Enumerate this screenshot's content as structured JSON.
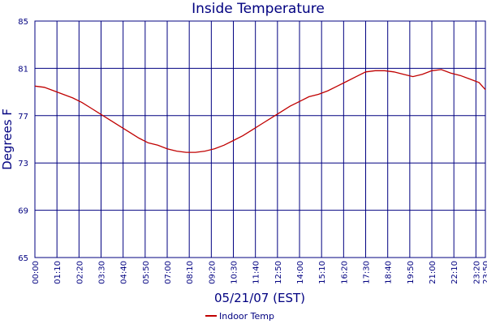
{
  "chart_data": {
    "type": "line",
    "title": "Inside Temperature",
    "xlabel": "05/21/07 (EST)",
    "ylabel": "Degrees F",
    "ylim": [
      65,
      85
    ],
    "yticks": [
      65,
      69,
      73,
      77,
      81,
      85
    ],
    "x_range_minutes": [
      0,
      1430
    ],
    "x_tick_labels": [
      "00:00",
      "01:10",
      "02:20",
      "03:30",
      "04:40",
      "05:50",
      "07:00",
      "08:10",
      "09:20",
      "10:30",
      "11:40",
      "12:50",
      "14:00",
      "15:10",
      "16:20",
      "17:30",
      "18:40",
      "19:50",
      "21:00",
      "22:10",
      "23:20",
      "23:50"
    ],
    "grid": true,
    "legend_position": "bottom-center",
    "colors": {
      "series": "#c00000",
      "grid": "#000080",
      "axis_text": "#000080"
    },
    "series": [
      {
        "name": "Indoor Temp",
        "x": [
          "00:00",
          "00:30",
          "01:00",
          "01:30",
          "02:00",
          "02:30",
          "03:00",
          "03:30",
          "04:00",
          "04:30",
          "05:00",
          "05:30",
          "06:00",
          "06:30",
          "07:00",
          "07:30",
          "08:00",
          "08:30",
          "09:00",
          "09:30",
          "10:00",
          "10:30",
          "11:00",
          "11:30",
          "12:00",
          "12:30",
          "13:00",
          "13:30",
          "14:00",
          "14:30",
          "15:00",
          "15:30",
          "16:00",
          "16:30",
          "17:00",
          "17:30",
          "18:00",
          "18:30",
          "19:00",
          "19:30",
          "20:00",
          "20:30",
          "21:00",
          "21:30",
          "22:00",
          "22:30",
          "23:00",
          "23:30",
          "23:50"
        ],
        "values": [
          79.5,
          79.4,
          79.1,
          78.8,
          78.5,
          78.1,
          77.6,
          77.1,
          76.6,
          76.1,
          75.6,
          75.1,
          74.7,
          74.5,
          74.2,
          74.0,
          73.9,
          73.9,
          74.0,
          74.2,
          74.5,
          74.9,
          75.3,
          75.8,
          76.3,
          76.8,
          77.3,
          77.8,
          78.2,
          78.6,
          78.8,
          79.1,
          79.5,
          79.9,
          80.3,
          80.7,
          80.8,
          80.8,
          80.7,
          80.5,
          80.3,
          80.5,
          80.8,
          80.9,
          80.6,
          80.4,
          80.1,
          79.8,
          79.2
        ]
      }
    ]
  }
}
